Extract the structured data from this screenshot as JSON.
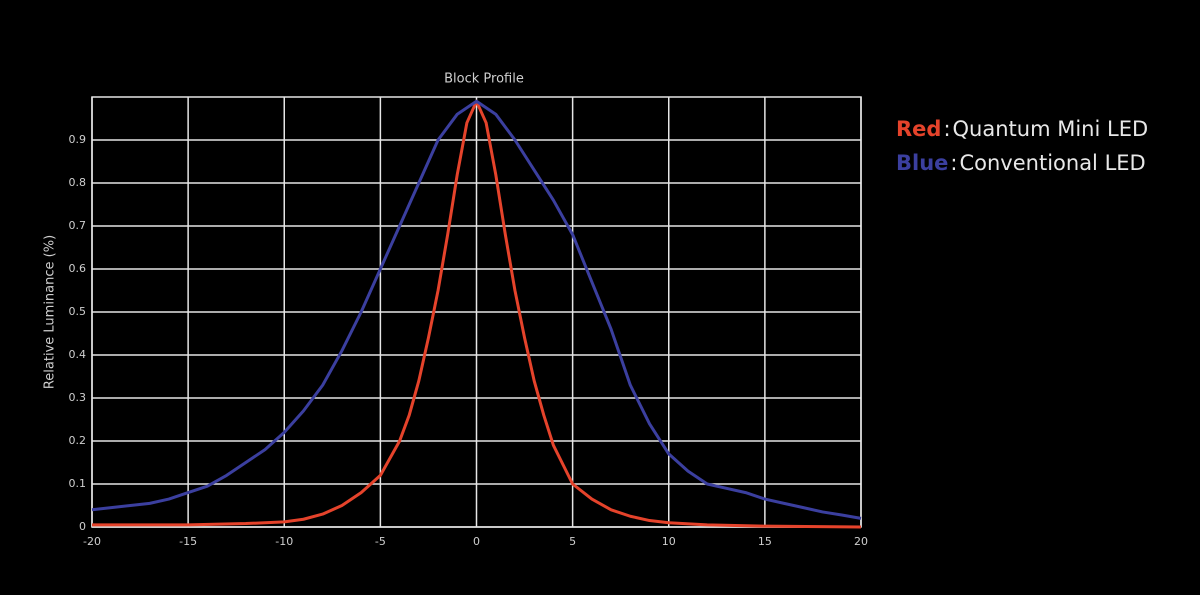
{
  "chart_data": {
    "type": "line",
    "title": "Block Profile",
    "y_label": "Relative Luminance (%)",
    "xlim": [
      -20,
      20
    ],
    "ylim": [
      0,
      1
    ],
    "xticks": [
      -20,
      -15,
      -10,
      -5,
      0,
      5,
      10,
      15,
      20
    ],
    "yticks": [
      0,
      0.1,
      0.2,
      0.3,
      0.4,
      0.5,
      0.6,
      0.7,
      0.8,
      0.9
    ],
    "grid": true,
    "legend": "upper right",
    "legend_separator": ":",
    "series": [
      {
        "key": "Red",
        "name": "Quantum Mini LED",
        "color": "#e5432b",
        "x": [
          -20,
          -15,
          -12,
          -10,
          -9,
          -8,
          -7,
          -6,
          -5,
          -4,
          -3.5,
          -3,
          -2.5,
          -2,
          -1.5,
          -1,
          -0.5,
          0,
          0.5,
          1,
          1.5,
          2,
          2.5,
          3,
          3.5,
          4,
          5,
          6,
          7,
          8,
          9,
          10,
          12,
          15,
          20
        ],
        "values": [
          0.005,
          0.005,
          0.008,
          0.012,
          0.018,
          0.03,
          0.05,
          0.08,
          0.12,
          0.2,
          0.26,
          0.34,
          0.44,
          0.55,
          0.68,
          0.82,
          0.94,
          0.99,
          0.94,
          0.82,
          0.68,
          0.55,
          0.44,
          0.34,
          0.26,
          0.19,
          0.1,
          0.065,
          0.04,
          0.025,
          0.015,
          0.01,
          0.005,
          0.002,
          0.0
        ]
      },
      {
        "key": "Blue",
        "name": "Conventional LED",
        "color": "#3b3f9f",
        "x": [
          -20,
          -19,
          -18,
          -17,
          -16,
          -15,
          -14,
          -13,
          -12,
          -11,
          -10,
          -9,
          -8,
          -7,
          -6,
          -5,
          -4,
          -3,
          -2,
          -1,
          0,
          1,
          2,
          3,
          4,
          5,
          6,
          7,
          8,
          9,
          10,
          11,
          12,
          13,
          14,
          15,
          16,
          17,
          18,
          19,
          20
        ],
        "values": [
          0.04,
          0.045,
          0.05,
          0.055,
          0.065,
          0.08,
          0.095,
          0.12,
          0.15,
          0.18,
          0.22,
          0.27,
          0.33,
          0.41,
          0.5,
          0.6,
          0.7,
          0.8,
          0.9,
          0.96,
          0.99,
          0.96,
          0.9,
          0.83,
          0.76,
          0.68,
          0.57,
          0.46,
          0.33,
          0.24,
          0.17,
          0.13,
          0.1,
          0.09,
          0.08,
          0.065,
          0.055,
          0.045,
          0.035,
          0.028,
          0.02
        ]
      }
    ]
  }
}
